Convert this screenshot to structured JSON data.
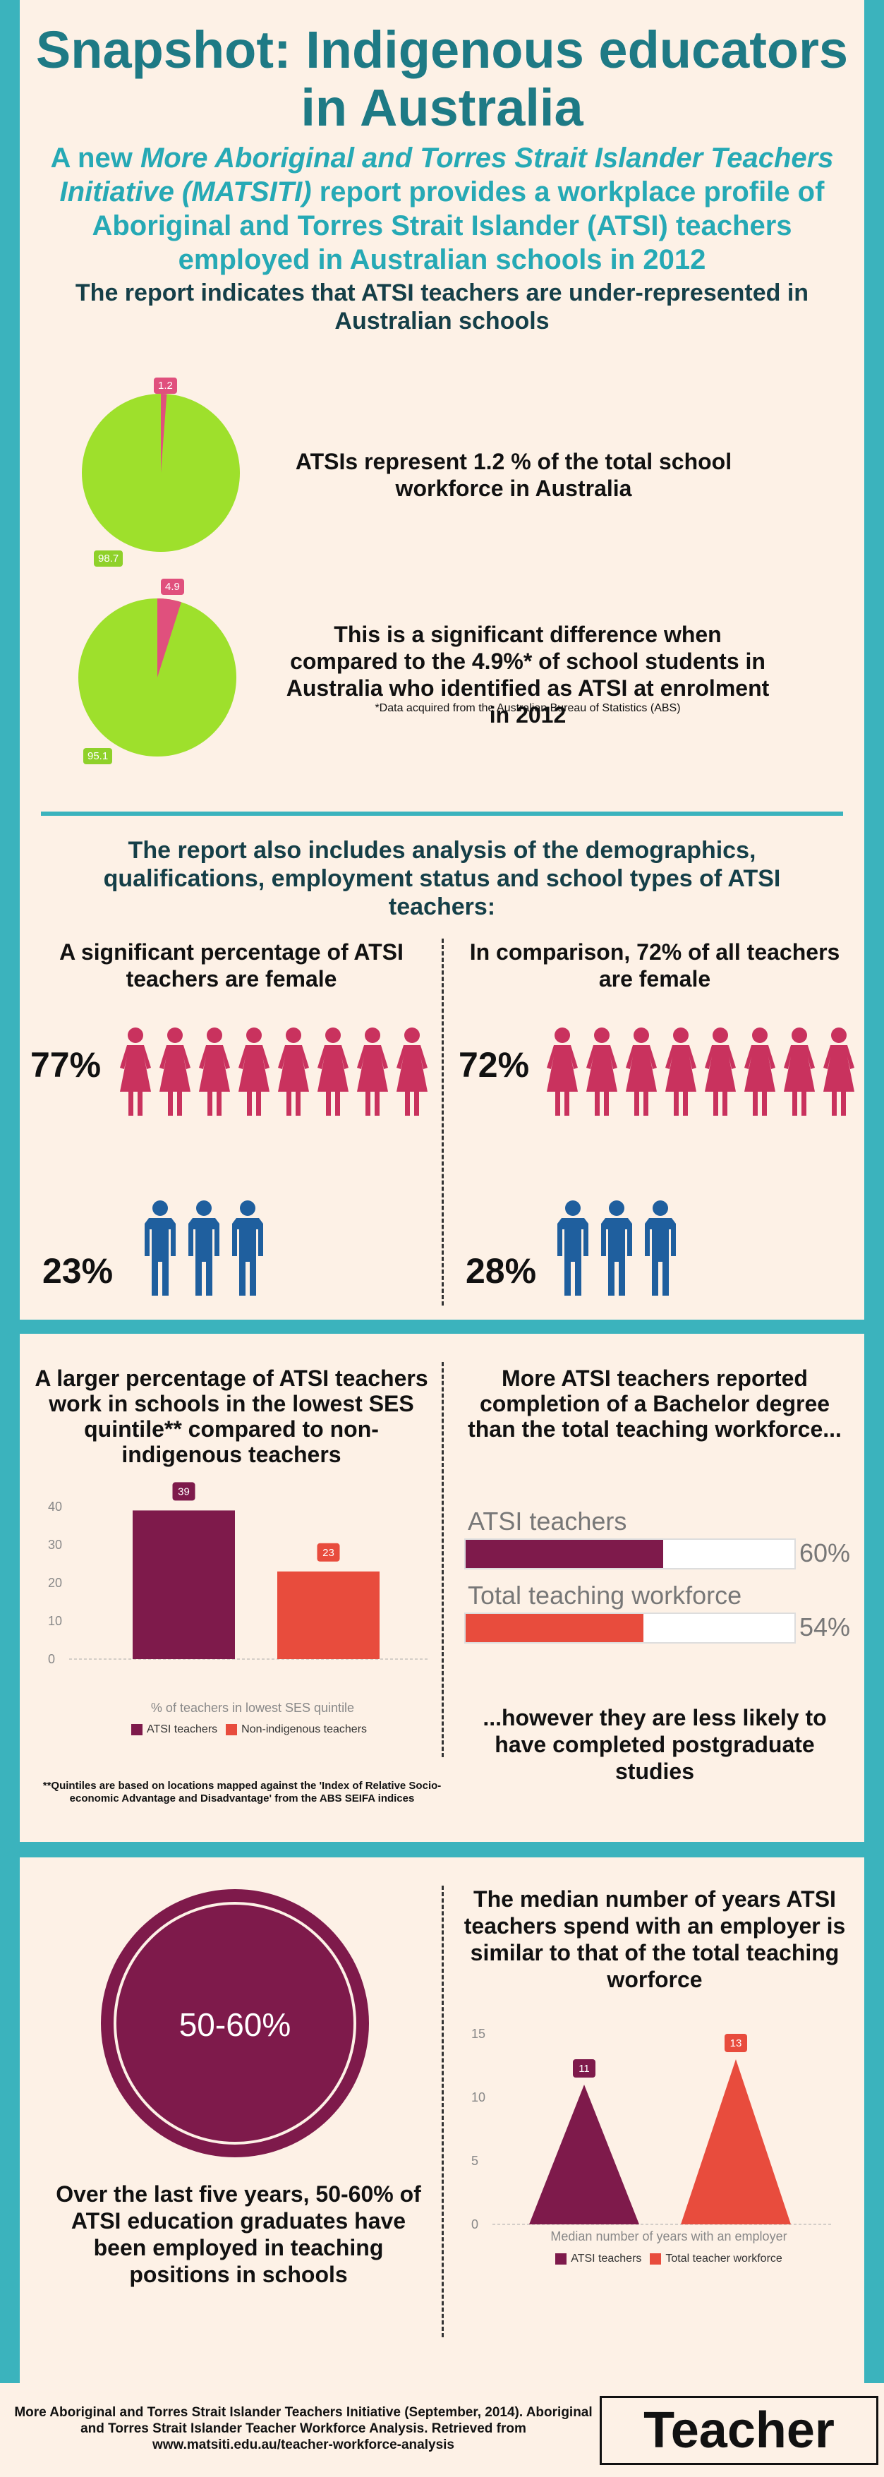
{
  "header": {
    "title": "Snapshot: Indigenous educators in Australia",
    "subtitle_a": "A new",
    "subtitle_italic": "More Aboriginal and Torres Strait Islander Teachers Initiative (MATSITI)",
    "subtitle_b": "report provides a workplace profile of Aboriginal and Torres Strait Islander (ATSI) teachers employed in Australian schools in 2012",
    "intro": "The report indicates that ATSI teachers are under-represented in Australian schools"
  },
  "pies": [
    {
      "small": "1.2",
      "large": "98.7",
      "text": "ATSIs represent 1.2 % of the total school workforce in Australia"
    },
    {
      "small": "4.9",
      "large": "95.1",
      "text": "This is a significant difference when compared to the 4.9%* of school students in Australia who identified as ATSI at enrolment in 2012",
      "note": "*Data acquired from the Australian Bureau of Statistics (ABS)"
    }
  ],
  "demographics": {
    "heading": "The report also includes analysis of the demographics, qualifications, employment status and school types of ATSI teachers:",
    "left_title": "A significant percentage of ATSI teachers are female",
    "left_female": "77%",
    "left_male": "23%",
    "right_title": "In comparison, 72% of all teachers are female",
    "right_female": "72%",
    "right_male": "28%"
  },
  "ses": {
    "title": "A larger percentage of ATSI teachers work in schools in the lowest SES quintile** compared to non-indigenous teachers",
    "xlabel": "% of teachers in lowest SES quintile",
    "note": "**Quintiles are based on locations mapped against the 'Index of Relative Socio-economic Advantage and Disadvantage' from the ABS SEIFA indices",
    "ticks": [
      "40",
      "30",
      "20",
      "10",
      "0"
    ]
  },
  "degree": {
    "title": "More ATSI teachers reported completion of a Bachelor degree than the total teaching workforce...",
    "bars": [
      {
        "label": "ATSI teachers",
        "value": "60%"
      },
      {
        "label": "Total teaching workforce",
        "value": "54%"
      }
    ],
    "footer": "...however they are less likely to have completed postgraduate studies"
  },
  "grads": {
    "circle": "50-60%",
    "text": "Over the last five years, 50-60% of ATSI education graduates have been employed in teaching positions in schools"
  },
  "years": {
    "title": "The median number of years ATSI teachers spend with an employer is similar to that of the total teaching worforce",
    "xlabel": "Median number of years with an employer",
    "ticks": [
      "15",
      "10",
      "5",
      "0"
    ]
  },
  "footer": {
    "citation": "More Aboriginal and Torres Strait Islander Teachers Initiative (September, 2014). Aboriginal and Torres Strait Islander Teacher Workforce Analysis. Retrieved from www.matsiti.edu.au/teacher-workforce-analysis",
    "logo": "Teacher"
  },
  "chart_data": [
    {
      "type": "pie",
      "values": [
        1.2,
        98.7
      ],
      "colors": [
        "#e0507d",
        "#9ee02c"
      ]
    },
    {
      "type": "pie",
      "values": [
        4.9,
        95.1
      ],
      "colors": [
        "#e0507d",
        "#9ee02c"
      ]
    },
    {
      "type": "bar",
      "categories": [
        "ATSI teachers",
        "Non-indigenous teachers"
      ],
      "values": [
        39,
        23
      ],
      "xlabel": "% of teachers in lowest SES quintile",
      "ylim": [
        0,
        40
      ],
      "colors": [
        "#7e1a4b",
        "#e84c3d"
      ]
    },
    {
      "type": "bar",
      "categories": [
        "ATSI teachers",
        "Total teaching workforce"
      ],
      "values": [
        60,
        54
      ],
      "colors": [
        "#7e1a4b",
        "#e84c3d"
      ]
    },
    {
      "type": "area",
      "categories": [
        "ATSI teachers",
        "Total teacher workforce"
      ],
      "values": [
        11,
        13
      ],
      "xlabel": "Median number of years with an employer",
      "ylim": [
        0,
        15
      ],
      "colors": [
        "#7e1a4b",
        "#e84c3d"
      ]
    }
  ]
}
